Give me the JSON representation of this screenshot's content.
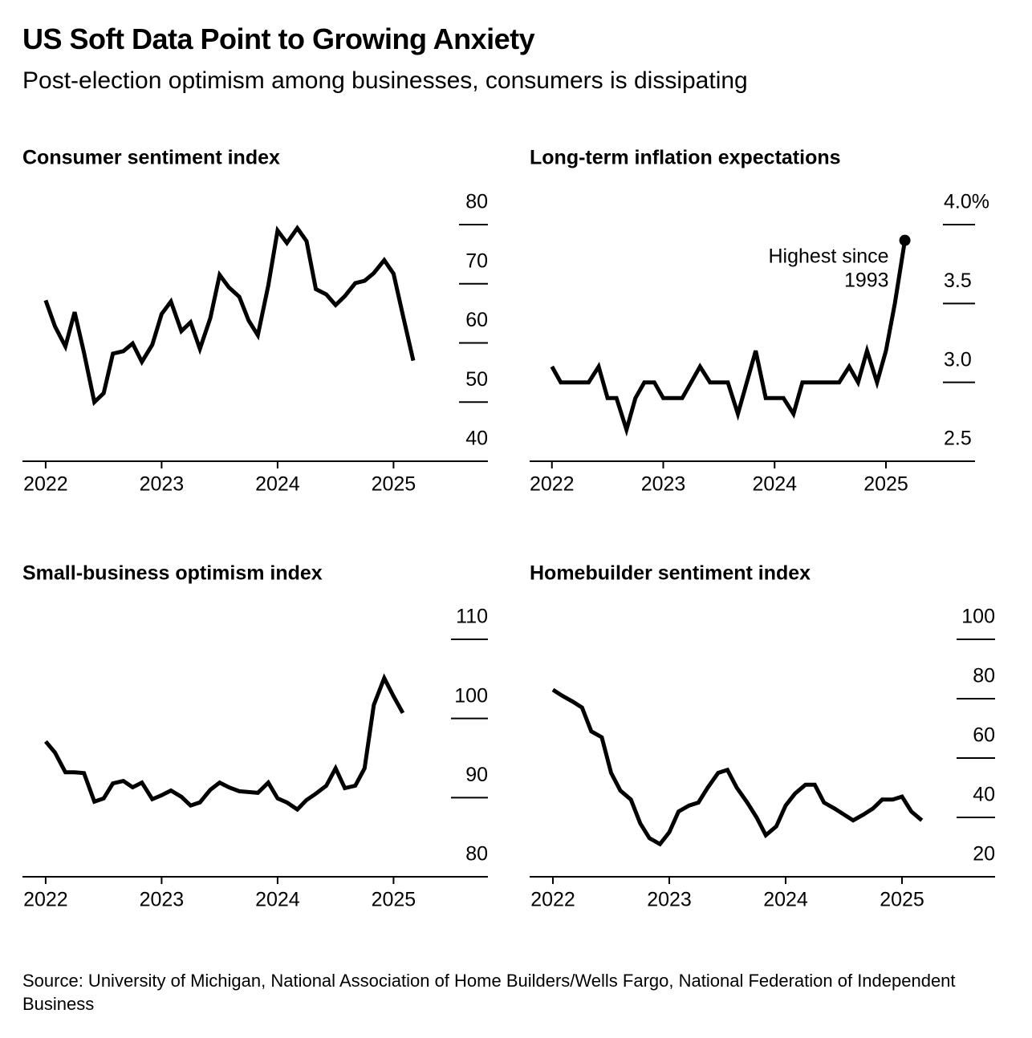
{
  "title": "US Soft Data Point to Growing Anxiety",
  "subtitle": "Post-election optimism among businesses, consumers is dissipating",
  "source": "Source: University of Michigan, National Association of Home Builders/Wells Fargo, National Federation of Independent Business",
  "chart_data": [
    {
      "type": "line",
      "title": "Consumer sentiment index",
      "x": [
        2022.0,
        2022.08,
        2022.17,
        2022.25,
        2022.33,
        2022.42,
        2022.5,
        2022.58,
        2022.67,
        2022.75,
        2022.83,
        2022.92,
        2023.0,
        2023.08,
        2023.17,
        2023.25,
        2023.33,
        2023.42,
        2023.5,
        2023.58,
        2023.67,
        2023.75,
        2023.83,
        2023.92,
        2024.0,
        2024.08,
        2024.17,
        2024.25,
        2024.33,
        2024.42,
        2024.5,
        2024.58,
        2024.67,
        2024.75,
        2024.83,
        2024.92,
        2025.0,
        2025.08,
        2025.17
      ],
      "values": [
        67.2,
        62.8,
        59.4,
        65.2,
        58.4,
        50.0,
        51.5,
        58.2,
        58.6,
        59.9,
        56.8,
        59.7,
        64.9,
        67.0,
        62.0,
        63.5,
        59.0,
        64.2,
        71.5,
        69.4,
        67.8,
        63.8,
        61.3,
        69.7,
        79.0,
        76.9,
        79.4,
        77.2,
        69.1,
        68.2,
        66.4,
        67.9,
        70.1,
        70.5,
        71.8,
        74.0,
        71.7,
        64.7,
        57.0
      ],
      "color": "#000000",
      "xlim": [
        2021.8,
        2025.8
      ],
      "xticks": [
        2022,
        2023,
        2024,
        2025
      ],
      "ylim": [
        40,
        80
      ],
      "yticks": [
        40,
        50,
        60,
        70,
        80
      ]
    },
    {
      "type": "line",
      "title": "Long-term inflation expectations",
      "x": [
        2022.0,
        2022.08,
        2022.17,
        2022.25,
        2022.33,
        2022.42,
        2022.5,
        2022.58,
        2022.67,
        2022.75,
        2022.83,
        2022.92,
        2023.0,
        2023.08,
        2023.17,
        2023.25,
        2023.33,
        2023.42,
        2023.5,
        2023.58,
        2023.67,
        2023.75,
        2023.83,
        2023.92,
        2024.0,
        2024.08,
        2024.17,
        2024.25,
        2024.33,
        2024.42,
        2024.5,
        2024.58,
        2024.67,
        2024.75,
        2024.83,
        2024.92,
        2025.0,
        2025.08,
        2025.17
      ],
      "values": [
        3.1,
        3.0,
        3.0,
        3.0,
        3.0,
        3.1,
        2.9,
        2.9,
        2.7,
        2.9,
        3.0,
        3.0,
        2.9,
        2.9,
        2.9,
        3.0,
        3.1,
        3.0,
        3.0,
        3.0,
        2.8,
        3.0,
        3.2,
        2.9,
        2.9,
        2.9,
        2.8,
        3.0,
        3.0,
        3.0,
        3.0,
        3.0,
        3.1,
        3.0,
        3.2,
        3.0,
        3.2,
        3.5,
        3.9
      ],
      "color": "#000000",
      "annotation": [
        "Highest since",
        "1993"
      ],
      "xlim": [
        2021.8,
        2025.8
      ],
      "xticks": [
        2022,
        2023,
        2024,
        2025
      ],
      "ylim": [
        2.5,
        4
      ],
      "yticks": [
        2.5,
        3.5,
        {
          "value": 3,
          "label": "3.0"
        },
        {
          "value": 4,
          "label": "4.0%"
        }
      ]
    },
    {
      "type": "line",
      "title": "Small-business optimism index",
      "x": [
        2022.0,
        2022.08,
        2022.17,
        2022.25,
        2022.33,
        2022.42,
        2022.5,
        2022.58,
        2022.67,
        2022.75,
        2022.83,
        2022.92,
        2023.0,
        2023.08,
        2023.17,
        2023.25,
        2023.33,
        2023.42,
        2023.5,
        2023.58,
        2023.67,
        2023.75,
        2023.83,
        2023.92,
        2024.0,
        2024.08,
        2024.17,
        2024.25,
        2024.33,
        2024.42,
        2024.5,
        2024.58,
        2024.67,
        2024.75,
        2024.83,
        2024.92,
        2025.0,
        2025.08
      ],
      "values": [
        97.1,
        95.7,
        93.2,
        93.2,
        93.1,
        89.5,
        89.9,
        91.8,
        92.1,
        91.3,
        91.9,
        89.8,
        90.3,
        90.9,
        90.1,
        89.0,
        89.4,
        91.0,
        91.9,
        91.3,
        90.8,
        90.7,
        90.6,
        91.9,
        89.9,
        89.4,
        88.5,
        89.7,
        90.5,
        91.5,
        93.7,
        91.2,
        91.5,
        93.7,
        101.7,
        105.1,
        102.8,
        100.7
      ],
      "color": "#000000",
      "xlim": [
        2021.8,
        2025.8
      ],
      "xticks": [
        2022,
        2023,
        2024,
        2025
      ],
      "ylim": [
        80,
        110
      ],
      "yticks": [
        80,
        90,
        100,
        110
      ]
    },
    {
      "type": "line",
      "title": "Homebuilder sentiment index",
      "x": [
        2022.0,
        2022.08,
        2022.17,
        2022.25,
        2022.33,
        2022.42,
        2022.5,
        2022.58,
        2022.67,
        2022.75,
        2022.83,
        2022.92,
        2023.0,
        2023.08,
        2023.17,
        2023.25,
        2023.33,
        2023.42,
        2023.5,
        2023.58,
        2023.67,
        2023.75,
        2023.83,
        2023.92,
        2024.0,
        2024.08,
        2024.17,
        2024.25,
        2024.33,
        2024.42,
        2024.5,
        2024.58,
        2024.67,
        2024.75,
        2024.83,
        2024.92,
        2025.0,
        2025.08,
        2025.17
      ],
      "values": [
        83,
        81,
        79,
        77,
        69,
        67,
        55,
        49,
        46,
        38,
        33,
        31,
        35,
        42,
        44,
        45,
        50,
        55,
        56,
        50,
        45,
        40,
        34,
        37,
        44,
        48,
        51,
        51,
        45,
        43,
        41,
        39,
        41,
        43,
        46,
        46,
        47,
        42,
        39
      ],
      "color": "#000000",
      "xlim": [
        2021.8,
        2025.8
      ],
      "xticks": [
        2022,
        2023,
        2024,
        2025
      ],
      "ylim": [
        20,
        100
      ],
      "yticks": [
        20,
        40,
        60,
        80,
        100
      ]
    }
  ]
}
